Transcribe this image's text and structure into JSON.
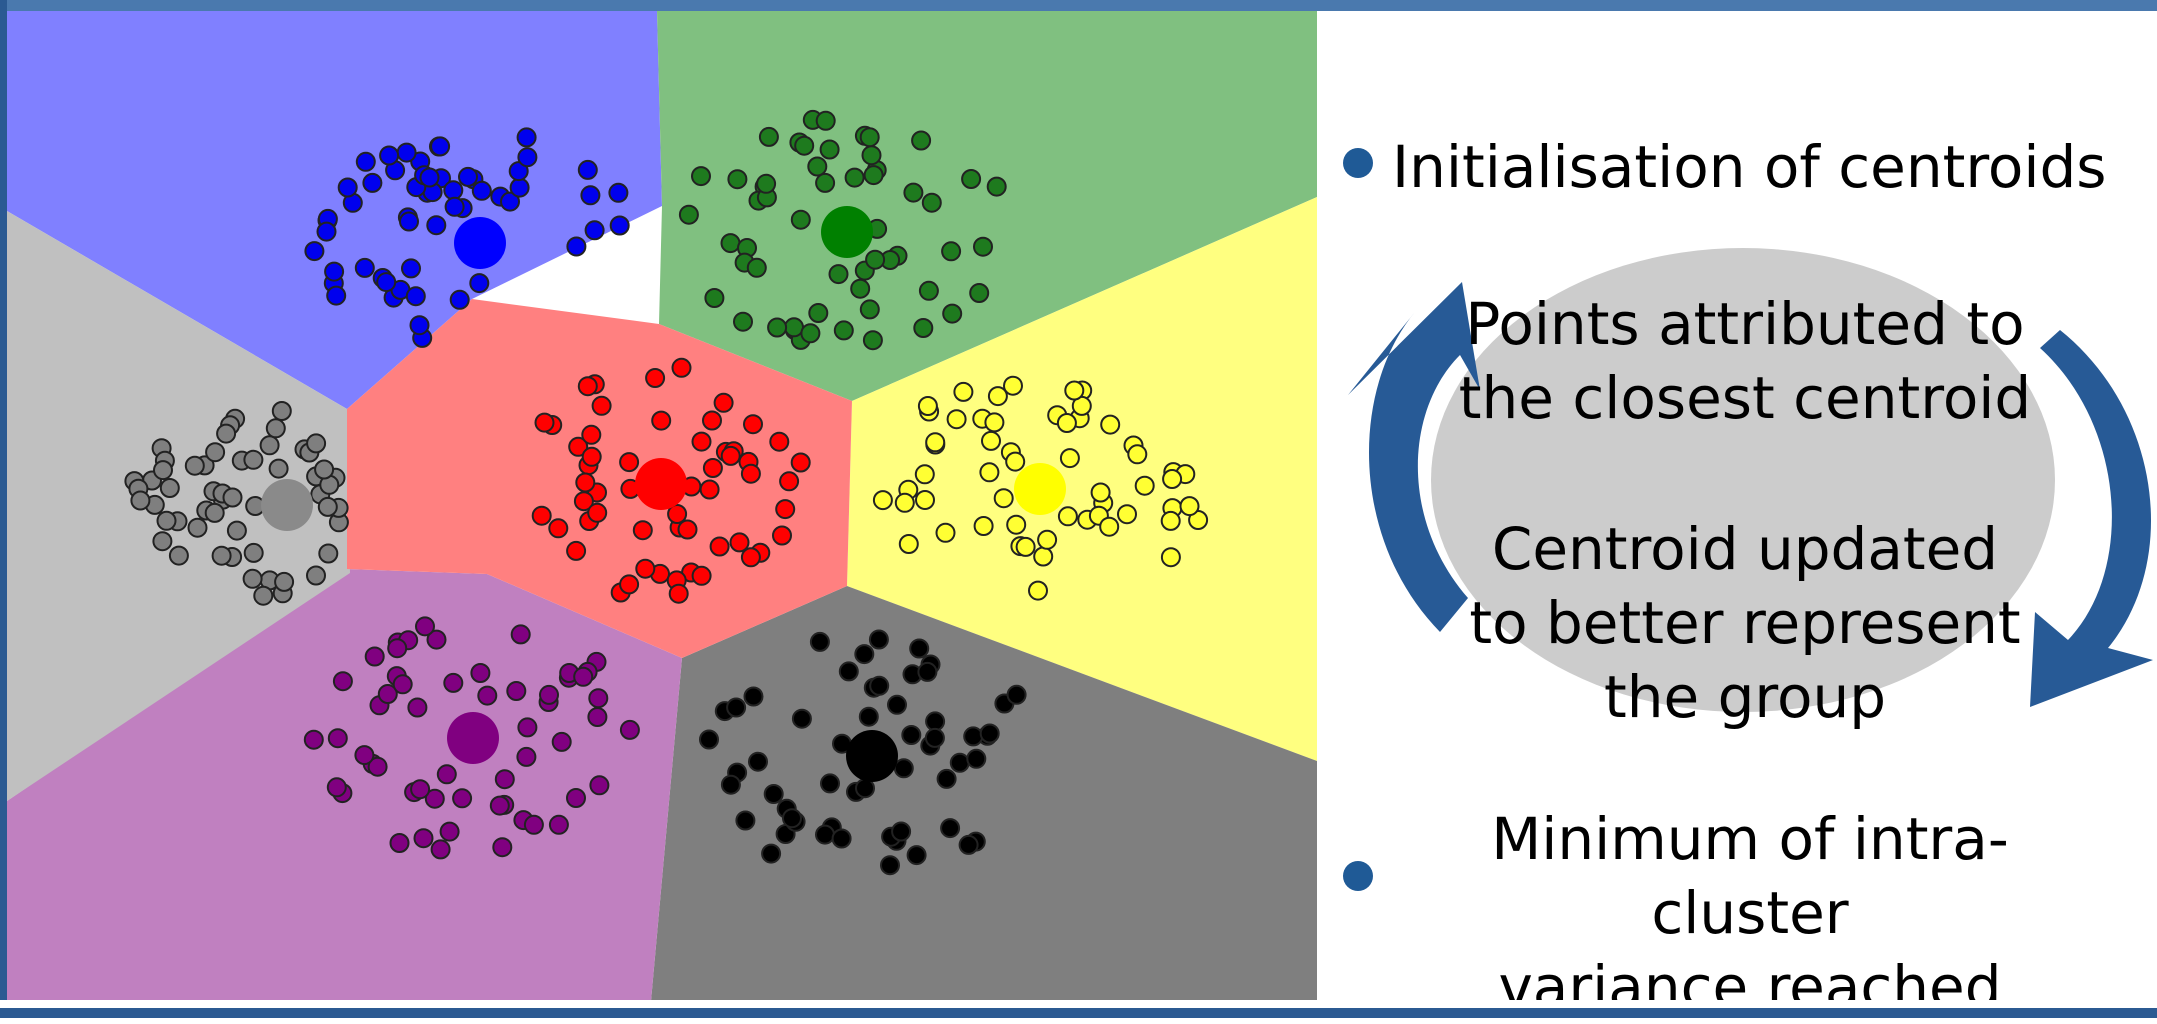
{
  "steps": {
    "init": "Initialisation of centroids",
    "assign_line1": "Points attributed to",
    "assign_line2": "the closest centroid",
    "update_line1": "Centroid updated",
    "update_line2": "to better represent",
    "update_line3": "the group",
    "stop_line1": "Minimum of intra-cluster",
    "stop_line2": "variance reached"
  },
  "colors": {
    "frame": "#2b5a92",
    "arrow": "#275a96",
    "ellipse": "#cccccc",
    "bullet": "#1f5a96"
  },
  "clusters": [
    {
      "name": "blue",
      "region": "#8080ff",
      "point": "#0000ee",
      "centroid": "#0000ff"
    },
    {
      "name": "green",
      "region": "#80c080",
      "point": "#1e7a1e",
      "centroid": "#008000"
    },
    {
      "name": "yellow",
      "region": "#ffff80",
      "point": "#ffff33",
      "centroid": "#ffff00"
    },
    {
      "name": "black",
      "region": "#7f7f7f",
      "point": "#000000",
      "centroid": "#000000"
    },
    {
      "name": "purple",
      "region": "#c080c0",
      "point": "#800080",
      "centroid": "#800080"
    },
    {
      "name": "gray",
      "region": "#c0c0c0",
      "point": "#7f7f7f",
      "centroid": "#8a8a8a"
    },
    {
      "name": "red",
      "region": "#ff8080",
      "point": "#ff0000",
      "centroid": "#ff0000"
    }
  ]
}
